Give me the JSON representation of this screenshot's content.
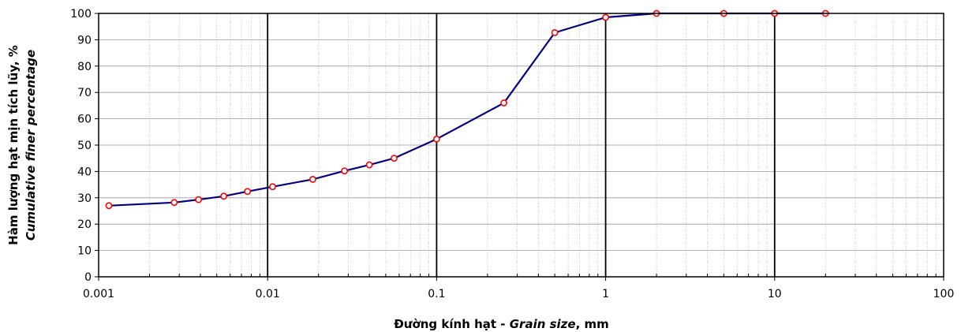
{
  "chart_data": {
    "type": "line",
    "x_scale": "log",
    "xlim": [
      0.001,
      100
    ],
    "ylim": [
      0,
      100
    ],
    "x_ticks": [
      "0.001",
      "0.01",
      "0.1",
      "1",
      "10",
      "100"
    ],
    "y_ticks": [
      "0",
      "10",
      "20",
      "30",
      "40",
      "50",
      "60",
      "70",
      "80",
      "90",
      "100"
    ],
    "xlabel": {
      "main": "Đường kính hạt - ",
      "italic": "Grain size",
      "unit": ", mm"
    },
    "ylabel": {
      "line1": "Hàm lượng hạt mịn tích lũy, %",
      "line2": "Cumulative finer percentage"
    },
    "grid": true,
    "series": [
      {
        "x": [
          0.00115,
          0.0028,
          0.0039,
          0.0055,
          0.0076,
          0.0107,
          0.0185,
          0.0285,
          0.04,
          0.056,
          0.1,
          0.25,
          0.5,
          1,
          2,
          5,
          10,
          20
        ],
        "y": [
          27,
          28.2,
          29.3,
          30.6,
          32.4,
          34.2,
          37,
          40.2,
          42.5,
          45,
          52.3,
          66,
          92.7,
          98.5,
          100,
          100,
          100,
          100
        ]
      }
    ],
    "colors": {
      "line": "#000080",
      "marker_stroke": "#ff0000",
      "marker_fill": "#ffffff",
      "major_grid": "#000000",
      "minor_grid": "#c0c0c0"
    }
  }
}
